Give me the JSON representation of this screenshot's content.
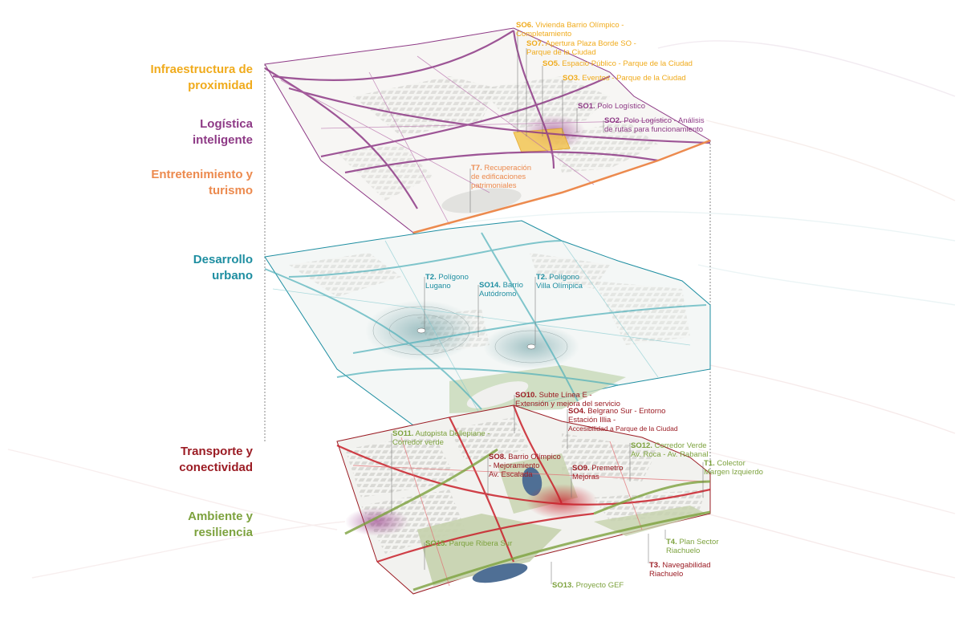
{
  "colors": {
    "yellow": "#f0ab1c",
    "purple": "#8e3a86",
    "orange": "#ec8a4e",
    "teal": "#1e8ea1",
    "red": "#9b1c24",
    "green": "#7da23e"
  },
  "themes": [
    {
      "id": "infraestructura",
      "line1": "Infraestructura de",
      "line2": "proximidad",
      "color": "yellow"
    },
    {
      "id": "logistica",
      "line1": "Logística",
      "line2": "inteligente",
      "color": "purple"
    },
    {
      "id": "entretenimiento",
      "line1": "Entretenimiento y",
      "line2": "turismo",
      "color": "orange"
    },
    {
      "id": "desarrollo",
      "line1": "Desarrollo",
      "line2": "urbano",
      "color": "teal"
    },
    {
      "id": "transporte",
      "line1": "Transporte y",
      "line2": "conectividad",
      "color": "red"
    },
    {
      "id": "ambiente",
      "line1": "Ambiente y",
      "line2": "resiliencia",
      "color": "green"
    }
  ],
  "annotations": {
    "so6": {
      "code": "SO6.",
      "text": "Vivienda Barrio Olímpico -",
      "line2": "Completamiento"
    },
    "so7": {
      "code": "SO7.",
      "text": "Apertura Plaza Borde SO -",
      "line2": "Parque de la Ciudad"
    },
    "so5": {
      "code": "SO5.",
      "text": "Espacio Público - Parque de la Ciudad"
    },
    "so3": {
      "code": "SO3.",
      "text": "Eventos - Parque de la Ciudad"
    },
    "so1": {
      "code": "SO1.",
      "text": "Polo Logístico"
    },
    "so2": {
      "code": "SO2.",
      "text": "Polo Logístico - Análisis",
      "line2": "de rutas para funcionamiento"
    },
    "t7": {
      "code": "T7.",
      "text": "Recuperación",
      "line2": "de edificaciones",
      "line3": "patrimoniales"
    },
    "t2a": {
      "code": "T2.",
      "text": "Polígono",
      "line2": "Lugano"
    },
    "so14": {
      "code": "SO14.",
      "text": "Barrio",
      "line2": "Autódromo"
    },
    "t2b": {
      "code": "T2.",
      "text": "Polígono",
      "line2": "Villa Olímpica"
    },
    "so10": {
      "code": "SO10.",
      "text": "Subte Línea E -",
      "line2": "Extensión y mejora del servicio"
    },
    "so4": {
      "code": "SO4.",
      "text": "Belgrano Sur - Entorno",
      "line2": "Estación Illia -",
      "line3": "Accesibilidad a Parque de la Ciudad"
    },
    "so11": {
      "code": "SO11.",
      "text": "Autopista Dellepiane -",
      "line2": "Corredor verde"
    },
    "so12": {
      "code": "SO12.",
      "text": "Corredor Verde",
      "line2": "Av. Roca - Av. Rabanal"
    },
    "so8": {
      "code": "SO8.",
      "text": "Barrio Olímpico",
      "line2": "- Mejoramiento",
      "line3": "Av. Escalada"
    },
    "so9": {
      "code": "SO9.",
      "text": "Premetro",
      "line2": "Mejoras"
    },
    "t1": {
      "code": "T1.",
      "text": "Colector",
      "line2": "Margen Izquierdo"
    },
    "so15": {
      "code": "SO15.",
      "text": "Parque Ribera Sur"
    },
    "t4": {
      "code": "T4.",
      "text": "Plan Sector",
      "line2": "Riachuelo"
    },
    "t3": {
      "code": "T3.",
      "text": "Navegabilidad",
      "line2": "Riachuelo"
    },
    "so13": {
      "code": "SO13.",
      "text": "Proyecto GEF"
    }
  }
}
